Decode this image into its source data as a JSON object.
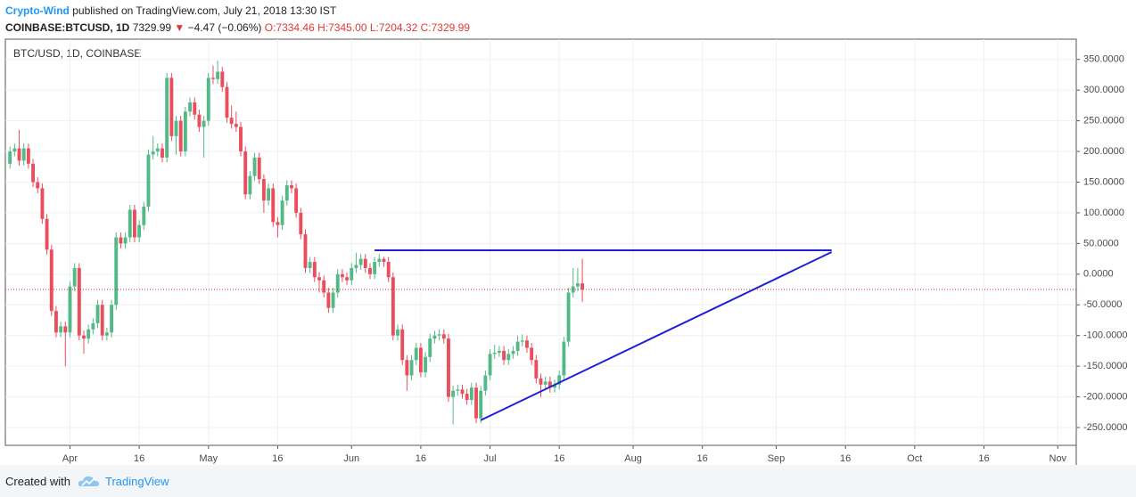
{
  "header": {
    "author": "Crypto-Wind",
    "published": "published on TradingView.com, July 21, 2018 13:30 IST",
    "symbol": "COINBASE:BTCUSD, 1D",
    "last": "7329.99",
    "change": "−4.47 (−0.06%)",
    "open": "O:7334.46",
    "high": "H:7345.00",
    "low": "L:7204.32",
    "close": "C:7329.99"
  },
  "footer": {
    "created": "Created with",
    "brand": "TradingView"
  },
  "chart_data": {
    "type": "candlestick",
    "title": "BTC/USD, 1D, COINBASE",
    "up_color": "#53b987",
    "down_color": "#eb4d5c",
    "grid": true,
    "x": [
      "2018-03-19",
      "2018-03-20",
      "2018-03-21",
      "2018-03-22",
      "2018-03-23",
      "2018-03-24",
      "2018-03-25",
      "2018-03-26",
      "2018-03-27",
      "2018-03-28",
      "2018-03-29",
      "2018-03-30",
      "2018-03-31",
      "2018-04-01",
      "2018-04-02",
      "2018-04-03",
      "2018-04-04",
      "2018-04-05",
      "2018-04-06",
      "2018-04-07",
      "2018-04-08",
      "2018-04-09",
      "2018-04-10",
      "2018-04-11",
      "2018-04-12",
      "2018-04-13",
      "2018-04-14",
      "2018-04-15",
      "2018-04-16",
      "2018-04-17",
      "2018-04-18",
      "2018-04-19",
      "2018-04-20",
      "2018-04-21",
      "2018-04-22",
      "2018-04-23",
      "2018-04-24",
      "2018-04-25",
      "2018-04-26",
      "2018-04-27",
      "2018-04-28",
      "2018-04-29",
      "2018-04-30",
      "2018-05-01",
      "2018-05-02",
      "2018-05-03",
      "2018-05-04",
      "2018-05-05",
      "2018-05-06",
      "2018-05-07",
      "2018-05-08",
      "2018-05-09",
      "2018-05-10",
      "2018-05-11",
      "2018-05-12",
      "2018-05-13",
      "2018-05-14",
      "2018-05-15",
      "2018-05-16",
      "2018-05-17",
      "2018-05-18",
      "2018-05-19",
      "2018-05-20",
      "2018-05-21",
      "2018-05-22",
      "2018-05-23",
      "2018-05-24",
      "2018-05-25",
      "2018-05-26",
      "2018-05-27",
      "2018-05-28",
      "2018-05-29",
      "2018-05-30",
      "2018-05-31",
      "2018-06-01",
      "2018-06-02",
      "2018-06-03",
      "2018-06-04",
      "2018-06-05",
      "2018-06-06",
      "2018-06-07",
      "2018-06-08",
      "2018-06-09",
      "2018-06-10",
      "2018-06-11",
      "2018-06-12",
      "2018-06-13",
      "2018-06-14",
      "2018-06-15",
      "2018-06-16",
      "2018-06-17",
      "2018-06-18",
      "2018-06-19",
      "2018-06-20",
      "2018-06-21",
      "2018-06-22",
      "2018-06-23",
      "2018-06-24",
      "2018-06-25",
      "2018-06-26",
      "2018-06-27",
      "2018-06-28",
      "2018-06-29",
      "2018-06-30",
      "2018-07-01",
      "2018-07-02",
      "2018-07-03",
      "2018-07-04",
      "2018-07-05",
      "2018-07-06",
      "2018-07-07",
      "2018-07-08",
      "2018-07-09",
      "2018-07-10",
      "2018-07-11",
      "2018-07-12",
      "2018-07-13",
      "2018-07-14",
      "2018-07-15",
      "2018-07-16",
      "2018-07-17",
      "2018-07-18",
      "2018-07-19",
      "2018-07-20",
      "2018-07-21"
    ],
    "open": [
      180,
      200,
      205,
      185,
      205,
      180,
      150,
      140,
      90,
      40,
      -60,
      -95,
      -85,
      -95,
      -20,
      10,
      -100,
      -105,
      -90,
      -80,
      -50,
      -100,
      -95,
      -50,
      60,
      50,
      60,
      105,
      60,
      80,
      110,
      195,
      200,
      205,
      190,
      320,
      225,
      250,
      200,
      265,
      280,
      260,
      240,
      250,
      320,
      318,
      330,
      305,
      255,
      245,
      240,
      200,
      130,
      160,
      190,
      155,
      120,
      140,
      85,
      80,
      120,
      145,
      140,
      100,
      65,
      10,
      20,
      -5,
      -10,
      -30,
      -55,
      -30,
      0,
      -5,
      -10,
      10,
      15,
      25,
      10,
      0,
      20,
      25,
      20,
      -5,
      -100,
      -90,
      -140,
      -165,
      -140,
      -120,
      -160,
      -135,
      -105,
      -100,
      -98,
      -105,
      -200,
      -190,
      -188,
      -195,
      -205,
      -185,
      -235,
      -190,
      -165,
      -130,
      -128,
      -125,
      -140,
      -130,
      -125,
      -110,
      -108,
      -120,
      -140,
      -170,
      -180,
      -175,
      -185,
      -180,
      -165,
      -110,
      -30,
      -20,
      -15
    ],
    "high": [
      208,
      213,
      235,
      213,
      213,
      188,
      158,
      148,
      98,
      48,
      -52,
      -77,
      -77,
      -12,
      18,
      18,
      -92,
      -82,
      -72,
      -42,
      -42,
      -87,
      -42,
      68,
      68,
      68,
      113,
      113,
      88,
      118,
      203,
      225,
      213,
      213,
      328,
      328,
      258,
      258,
      273,
      288,
      288,
      268,
      258,
      328,
      340,
      348,
      338,
      313,
      275,
      265,
      248,
      208,
      168,
      198,
      198,
      163,
      148,
      148,
      93,
      128,
      153,
      153,
      148,
      108,
      73,
      28,
      28,
      3,
      -2,
      -22,
      -22,
      8,
      8,
      3,
      18,
      35,
      33,
      33,
      18,
      28,
      33,
      28,
      28,
      3,
      -82,
      -82,
      -132,
      -132,
      -112,
      -112,
      -127,
      -97,
      -92,
      -90,
      -90,
      -97,
      -182,
      -180,
      -180,
      -187,
      -177,
      -177,
      -182,
      -157,
      -122,
      -115,
      -117,
      -117,
      -122,
      -117,
      -100,
      -98,
      -100,
      -112,
      -132,
      -162,
      -167,
      -167,
      -172,
      -157,
      -102,
      -22,
      10,
      10,
      25
    ],
    "low": [
      172,
      192,
      177,
      177,
      172,
      142,
      132,
      82,
      32,
      -68,
      -103,
      -103,
      -150,
      -103,
      -28,
      -108,
      -130,
      -113,
      -98,
      -88,
      -108,
      -108,
      -103,
      -58,
      42,
      42,
      52,
      52,
      52,
      72,
      102,
      187,
      192,
      182,
      182,
      217,
      195,
      192,
      192,
      257,
      252,
      232,
      190,
      242,
      310,
      310,
      297,
      247,
      237,
      232,
      192,
      122,
      122,
      152,
      147,
      100,
      112,
      77,
      60,
      72,
      112,
      132,
      92,
      57,
      2,
      2,
      -13,
      -30,
      -38,
      -63,
      -63,
      -38,
      -13,
      -18,
      -18,
      2,
      7,
      2,
      -8,
      -8,
      12,
      12,
      -13,
      -108,
      -108,
      -148,
      -190,
      -173,
      -148,
      -168,
      -168,
      -143,
      -113,
      -108,
      -113,
      -208,
      -245,
      -198,
      -203,
      -213,
      -213,
      -243,
      -243,
      -198,
      -173,
      -138,
      -135,
      -148,
      -148,
      -138,
      -133,
      -118,
      -128,
      -148,
      -178,
      -200,
      -188,
      -193,
      -193,
      -188,
      -173,
      -118,
      -38,
      -28,
      -45
    ],
    "close": [
      200,
      205,
      185,
      205,
      180,
      150,
      140,
      90,
      40,
      -60,
      -95,
      -85,
      -95,
      -20,
      10,
      -100,
      -105,
      -90,
      -80,
      -50,
      -100,
      -95,
      -50,
      60,
      50,
      60,
      105,
      60,
      80,
      110,
      195,
      200,
      205,
      190,
      320,
      225,
      250,
      200,
      265,
      280,
      260,
      240,
      250,
      320,
      318,
      330,
      305,
      255,
      245,
      240,
      200,
      130,
      160,
      190,
      155,
      120,
      140,
      85,
      80,
      120,
      145,
      140,
      100,
      65,
      10,
      20,
      -5,
      -10,
      -30,
      -55,
      -30,
      0,
      -5,
      -10,
      10,
      15,
      25,
      10,
      0,
      20,
      25,
      20,
      -5,
      -100,
      -90,
      -140,
      -165,
      -140,
      -120,
      -160,
      -135,
      -105,
      -100,
      -98,
      -105,
      -200,
      -190,
      -188,
      -195,
      -205,
      -185,
      -235,
      -190,
      -165,
      -130,
      -128,
      -125,
      -140,
      -130,
      -125,
      -110,
      -108,
      -120,
      -140,
      -170,
      -180,
      -175,
      -185,
      -180,
      -165,
      -110,
      -30,
      -20,
      -15,
      -25
    ],
    "xlim": [
      "2018-03-18",
      "2018-11-05"
    ],
    "xticks": [
      {
        "value": "2018-04-01",
        "label": "Apr"
      },
      {
        "value": "2018-04-16",
        "label": "16"
      },
      {
        "value": "2018-05-01",
        "label": "May"
      },
      {
        "value": "2018-05-16",
        "label": "16"
      },
      {
        "value": "2018-06-01",
        "label": "Jun"
      },
      {
        "value": "2018-06-16",
        "label": "16"
      },
      {
        "value": "2018-07-01",
        "label": "Jul"
      },
      {
        "value": "2018-07-16",
        "label": "16"
      },
      {
        "value": "2018-08-01",
        "label": "Aug"
      },
      {
        "value": "2018-08-16",
        "label": "16"
      },
      {
        "value": "2018-09-01",
        "label": "Sep"
      },
      {
        "value": "2018-09-16",
        "label": "16"
      },
      {
        "value": "2018-10-01",
        "label": "Oct"
      },
      {
        "value": "2018-10-16",
        "label": "16"
      },
      {
        "value": "2018-11-01",
        "label": "Nov"
      }
    ],
    "ylim": [
      -279,
      383
    ],
    "yticks": [
      {
        "value": 350,
        "label": "350.0000"
      },
      {
        "value": 300,
        "label": "300.0000"
      },
      {
        "value": 250,
        "label": "250.0000"
      },
      {
        "value": 200,
        "label": "200.0000"
      },
      {
        "value": 150,
        "label": "150.0000"
      },
      {
        "value": 100,
        "label": "100.0000"
      },
      {
        "value": 50,
        "label": "50.0000"
      },
      {
        "value": 0,
        "label": "0.0000"
      },
      {
        "value": -50,
        "label": "-50.0000"
      },
      {
        "value": -100,
        "label": "-100.0000"
      },
      {
        "value": -150,
        "label": "-150.0000"
      },
      {
        "value": -200,
        "label": "-200.0000"
      },
      {
        "value": -250,
        "label": "-250.0000"
      }
    ],
    "price_line_color": "#d32f2f",
    "drawings": [
      {
        "color": "#1f1fd8",
        "x": [
          "2018-06-06",
          "2018-09-13"
        ],
        "y": [
          39,
          39
        ]
      },
      {
        "color": "#1f1fd8",
        "x": [
          "2018-06-29",
          "2018-09-13"
        ],
        "y": [
          -238,
          36
        ]
      }
    ]
  }
}
